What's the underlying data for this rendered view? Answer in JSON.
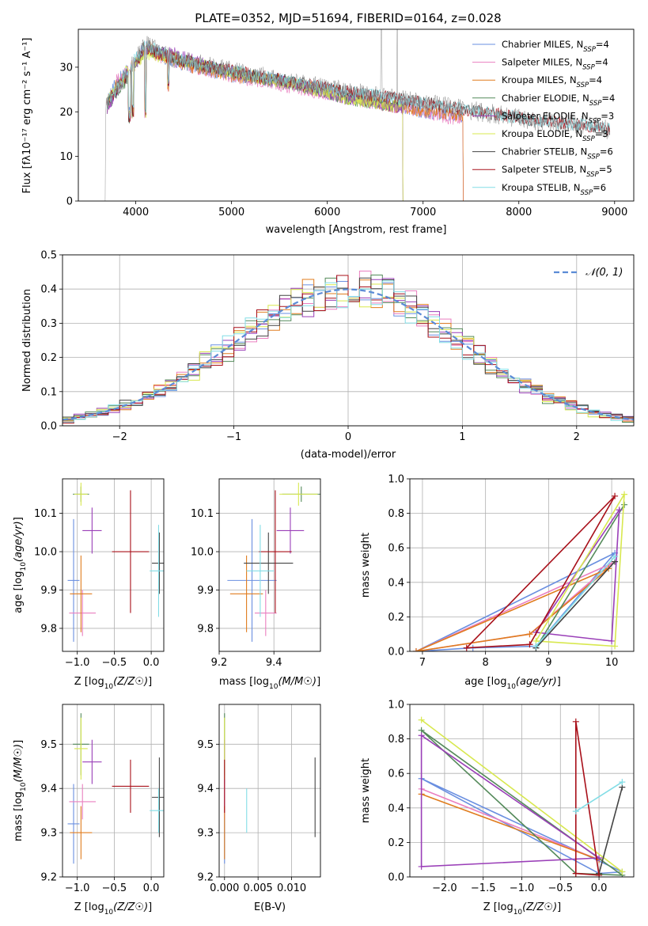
{
  "figure_title": "PLATE=0352, MJD=51694, FIBERID=0164, z=0.028",
  "series_colors": [
    "#6a8fe0",
    "#ea7fc0",
    "#e07c1e",
    "#548a5a",
    "#9a3fb8",
    "#d8e84f",
    "#444444",
    "#a8101a",
    "#82dde6"
  ],
  "chart_data": [
    {
      "id": "spectrum",
      "type": "line",
      "title": "PLATE=0352, MJD=51694, FIBERID=0164, z=0.028",
      "xlabel": "wavelength [Angstrom, rest frame]",
      "ylabel": "Flux [fλ10⁻¹⁷ erg cm⁻² s⁻¹ A⁻¹]",
      "xlim": [
        3400,
        9200
      ],
      "ylim": [
        0,
        38.5
      ],
      "xticks": [
        4000,
        5000,
        6000,
        7000,
        8000,
        9000
      ],
      "yticks": [
        0,
        10,
        20,
        30
      ],
      "grid": false,
      "legend": "top-right",
      "series": [
        {
          "name": "Chabrier MILES, N",
          "sub": "SSP",
          "suffix": "=4",
          "x": [
            3700,
            3800,
            3950,
            4100,
            4300,
            4600,
            5000,
            5500,
            6000,
            6500,
            7000,
            7420
          ],
          "y": [
            22,
            27,
            30,
            35,
            32,
            30,
            28,
            27,
            25,
            22,
            20,
            19
          ]
        },
        {
          "name": "Salpeter MILES, N",
          "sub": "SSP",
          "suffix": "=4",
          "x": [
            3700,
            3800,
            3950,
            4100,
            4300,
            4600,
            5000,
            5500,
            6000,
            6500,
            7000,
            7420
          ],
          "y": [
            21,
            27,
            30,
            34,
            32,
            30,
            28,
            26,
            24,
            22,
            20,
            18
          ]
        },
        {
          "name": "Kroupa MILES, N",
          "sub": "SSP",
          "suffix": "=4",
          "x": [
            3700,
            3800,
            3950,
            4100,
            4300,
            4600,
            5000,
            5500,
            6000,
            6500,
            7000,
            7420
          ],
          "y": [
            22,
            26,
            29,
            35,
            32,
            30,
            28,
            27,
            25,
            22,
            20,
            19
          ]
        },
        {
          "name": "Chabrier ELODIE, N",
          "sub": "SSP",
          "suffix": "=4",
          "x": [
            3700,
            3900,
            4100,
            4400,
            4800,
            5200,
            5700,
            6200,
            6790
          ],
          "y": [
            21,
            27,
            34,
            32,
            30,
            28,
            26,
            23,
            21
          ]
        },
        {
          "name": "Salpeter ELODIE, N",
          "sub": "SSP",
          "suffix": "=3",
          "x": [
            3700,
            3900,
            4100,
            4400,
            4800,
            5200,
            5700,
            6200,
            6790
          ],
          "y": [
            21,
            28,
            34,
            33,
            30,
            28,
            26,
            23,
            21
          ]
        },
        {
          "name": "Kroupa ELODIE, N",
          "sub": "SSP",
          "suffix": "=3",
          "x": [
            3700,
            3900,
            4100,
            4400,
            4800,
            5200,
            5700,
            6200,
            6790
          ],
          "y": [
            22,
            29,
            33,
            32,
            30,
            28,
            26,
            23,
            21
          ]
        },
        {
          "name": "Chabrier STELIB, N",
          "sub": "SSP",
          "suffix": "=6",
          "x": [
            3700,
            3900,
            4100,
            4400,
            4800,
            5300,
            5800,
            6400,
            7000,
            7600,
            8200,
            8700,
            8950
          ],
          "y": [
            22,
            28,
            35,
            32,
            30,
            28,
            26,
            24,
            22,
            20,
            18,
            17,
            16
          ]
        },
        {
          "name": "Salpeter STELIB, N",
          "sub": "SSP",
          "suffix": "=5",
          "x": [
            3700,
            3900,
            4100,
            4400,
            4800,
            5300,
            5800,
            6400,
            7000,
            7600,
            8200,
            8700,
            8950
          ],
          "y": [
            22,
            28,
            34,
            32,
            30,
            28,
            26,
            24,
            22,
            20,
            18,
            17,
            16
          ]
        },
        {
          "name": "Kroupa STELIB, N",
          "sub": "SSP",
          "suffix": "=6",
          "x": [
            3700,
            3900,
            4100,
            4400,
            4800,
            5300,
            5800,
            6400,
            7000,
            7600,
            8200,
            8700,
            8950
          ],
          "y": [
            22,
            29,
            35,
            32,
            30,
            28,
            26,
            24,
            22,
            20,
            18,
            17,
            16
          ]
        }
      ]
    },
    {
      "id": "residuals",
      "type": "histogram",
      "xlabel": "(data-model)/error",
      "ylabel": "Normed distribution",
      "xlim": [
        -2.5,
        2.5
      ],
      "ylim": [
        0,
        0.5
      ],
      "xticks": [
        -2,
        -1,
        0,
        1,
        2
      ],
      "yticks": [
        0.0,
        0.1,
        0.2,
        0.3,
        0.4,
        0.5
      ],
      "grid": true,
      "legend": "top-right",
      "reference_curve": "𝒩(0, 1)",
      "bin_width": 0.1,
      "bin_start": -2.5
    },
    {
      "id": "age-vs-Z",
      "type": "scatter",
      "xlabel": "Z [log10(Z/Z☉)]",
      "ylabel": "age  [log10(age/yr)]",
      "xlim": [
        -1.2,
        0.17
      ],
      "ylim": [
        9.74,
        10.19
      ],
      "xticks": [
        -1.0,
        -0.5,
        0.0
      ],
      "yticks": [
        9.8,
        9.9,
        10.0,
        10.1
      ],
      "grid": true
    },
    {
      "id": "age-vs-mass",
      "type": "scatter",
      "xlabel": "mass [log10(M/M☉)]",
      "xlim": [
        9.2,
        9.57
      ],
      "ylim": [
        9.74,
        10.19
      ],
      "xticks": [
        9.2,
        9.4
      ],
      "yticks": [
        9.8,
        9.9,
        10.0,
        10.1
      ],
      "grid": true
    },
    {
      "id": "weight-vs-age",
      "type": "line",
      "xlabel": "age  [log10(age/yr)]",
      "ylabel": "mass weight",
      "xlim": [
        6.8,
        10.35
      ],
      "ylim": [
        0,
        1
      ],
      "xticks": [
        7,
        8,
        9,
        10
      ],
      "yticks": [
        0.0,
        0.2,
        0.4,
        0.6,
        0.8,
        1.0
      ],
      "grid": true
    },
    {
      "id": "mass-vs-Z",
      "type": "scatter",
      "xlabel": "Z [log10(Z/Z☉)]",
      "ylabel": "mass [log10(M/M☉)]",
      "xlim": [
        -1.2,
        0.17
      ],
      "ylim": [
        9.2,
        9.59
      ],
      "xticks": [
        -1.0,
        -0.5,
        0.0
      ],
      "yticks": [
        9.2,
        9.3,
        9.4,
        9.5
      ],
      "grid": true
    },
    {
      "id": "mass-vs-ebv",
      "type": "scatter",
      "xlabel": "E(B-V)",
      "xlim": [
        -0.0008,
        0.0143
      ],
      "ylim": [
        9.2,
        9.59
      ],
      "xticks": [
        0.0,
        0.005,
        0.01
      ],
      "xtick_labels": [
        "0.000",
        "0.005",
        "0.010"
      ],
      "yticks": [
        9.2,
        9.3,
        9.4,
        9.5
      ],
      "grid": true
    },
    {
      "id": "weight-vs-Z",
      "type": "line",
      "xlabel": "Z [log10(Z/Z☉)]",
      "ylabel": "mass weight",
      "xlim": [
        -2.45,
        0.45
      ],
      "ylim": [
        0,
        1
      ],
      "xticks": [
        -2.0,
        -1.5,
        -1.0,
        -0.5,
        0.0
      ],
      "yticks": [
        0.0,
        0.2,
        0.4,
        0.6,
        0.8,
        1.0
      ],
      "grid": true
    }
  ],
  "fit_results": {
    "series": [
      {
        "Z": -1.05,
        "Zerr": 0.08,
        "age": 9.925,
        "ageerr": 0.16,
        "mass": 9.32,
        "masserr": 0.09,
        "ebv": 0.0,
        "ebverr_lo": 0.0,
        "ebverr_hi": 0.0,
        "ages": [
          6.9,
          7.8,
          8.8,
          10.05
        ],
        "weights": [
          0.0,
          0.02,
          0.03,
          0.57
        ],
        "Zs": [
          -2.3,
          0.0,
          0.3
        ],
        "wZ": [
          0.57,
          0.02,
          0.03
        ]
      },
      {
        "Z": -0.93,
        "Zerr": 0.18,
        "age": 9.84,
        "ageerr": 0.06,
        "mass": 9.37,
        "masserr": 0.04,
        "ebv": 0.0,
        "ebverr_lo": 0.0,
        "ebverr_hi": 0.0,
        "ages": [
          6.9,
          8.7,
          10.0
        ],
        "weights": [
          0.0,
          0.1,
          0.51
        ],
        "Zs": [
          -2.3,
          0.0
        ],
        "wZ": [
          0.51,
          0.1
        ]
      },
      {
        "Z": -0.95,
        "Zerr": 0.15,
        "age": 9.89,
        "ageerr": 0.1,
        "mass": 9.3,
        "masserr": 0.06,
        "ebv": 0.0,
        "ebverr_lo": 0.0,
        "ebverr_hi": 0.0,
        "ages": [
          6.9,
          8.7,
          9.95
        ],
        "weights": [
          0.0,
          0.1,
          0.48
        ],
        "Zs": [
          -2.3,
          0.0
        ],
        "wZ": [
          0.48,
          0.1
        ]
      },
      {
        "Z": -0.95,
        "Zerr": 0.11,
        "age": 10.15,
        "ageerr": 0.02,
        "mass": 9.5,
        "masserr": 0.07,
        "ebv": 0.0,
        "ebverr_lo": 0.0,
        "ebverr_hi": 0.0,
        "ages": [
          8.8,
          10.2
        ],
        "weights": [
          0.02,
          0.85
        ],
        "Zs": [
          -2.3,
          -0.3,
          0.3
        ],
        "wZ": [
          0.85,
          0.02,
          0.01
        ]
      },
      {
        "Z": -0.8,
        "Zerr": 0.13,
        "age": 10.055,
        "ageerr": 0.06,
        "mass": 9.46,
        "masserr": 0.05,
        "ebv": 0.0,
        "ebverr_lo": 0.0,
        "ebverr_hi": 0.0,
        "ages": [
          8.8,
          10.0,
          10.12
        ],
        "weights": [
          0.11,
          0.06,
          0.82
        ],
        "Zs": [
          -2.3,
          -2.3,
          0.0
        ],
        "wZ": [
          0.82,
          0.06,
          0.11
        ]
      },
      {
        "Z": -0.95,
        "Zerr": 0.09,
        "age": 10.15,
        "ageerr": 0.03,
        "mass": 9.49,
        "masserr": 0.07,
        "ebv": 0.0,
        "ebverr_lo": 0.0,
        "ebverr_hi": 0.0,
        "ages": [
          8.8,
          10.05,
          10.2
        ],
        "weights": [
          0.06,
          0.03,
          0.91
        ],
        "Zs": [
          -2.3,
          0.3
        ],
        "wZ": [
          0.91,
          0.03
        ]
      },
      {
        "Z": 0.11,
        "Zerr": 0.1,
        "age": 9.97,
        "ageerr": 0.08,
        "mass": 9.38,
        "masserr": 0.09,
        "ebv": 0.0135,
        "ebverr_lo": 0.0,
        "ebverr_hi": 0.0,
        "ages": [
          8.8,
          10.05
        ],
        "weights": [
          0.02,
          0.52
        ],
        "Zs": [
          0.0,
          0.3
        ],
        "wZ": [
          0.02,
          0.52
        ]
      },
      {
        "Z": -0.28,
        "Zerr": 0.25,
        "age": 10.0,
        "ageerr": 0.16,
        "mass": 9.405,
        "masserr": 0.06,
        "ebv": 0.0,
        "ebverr_lo": 0.0,
        "ebverr_hi": 0.0,
        "ages": [
          7.7,
          8.7,
          10.05
        ],
        "weights": [
          0.02,
          0.04,
          0.9
        ],
        "Zs": [
          -0.3,
          -0.3,
          0.0
        ],
        "wZ": [
          0.9,
          0.02,
          0.01
        ]
      },
      {
        "Z": 0.1,
        "Zerr": 0.12,
        "age": 9.95,
        "ageerr": 0.12,
        "mass": 9.35,
        "masserr": 0.05,
        "ebv": 0.0033,
        "ebverr_lo": 0.0,
        "ebverr_hi": 0.0,
        "ages": [
          8.8,
          10.05
        ],
        "weights": [
          0.03,
          0.55
        ],
        "Zs": [
          -0.3,
          0.3
        ],
        "wZ": [
          0.38,
          0.55
        ]
      }
    ]
  }
}
